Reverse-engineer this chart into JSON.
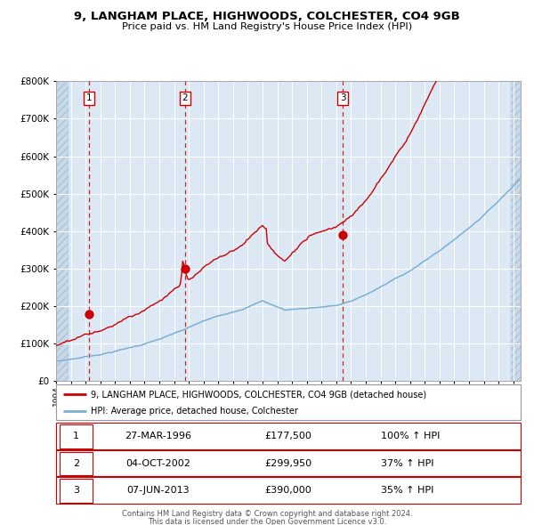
{
  "title1": "9, LANGHAM PLACE, HIGHWOODS, COLCHESTER, CO4 9GB",
  "title2": "Price paid vs. HM Land Registry's House Price Index (HPI)",
  "legend_line1": "9, LANGHAM PLACE, HIGHWOODS, COLCHESTER, CO4 9GB (detached house)",
  "legend_line2": "HPI: Average price, detached house, Colchester",
  "table": [
    [
      "1",
      "27-MAR-1996",
      "£177,500",
      "100% ↑ HPI"
    ],
    [
      "2",
      "04-OCT-2002",
      "£299,950",
      "37% ↑ HPI"
    ],
    [
      "3",
      "07-JUN-2013",
      "£390,000",
      "35% ↑ HPI"
    ]
  ],
  "footer1": "Contains HM Land Registry data © Crown copyright and database right 2024.",
  "footer2": "This data is licensed under the Open Government Licence v3.0.",
  "sale_dates": [
    1996.23,
    2002.75,
    2013.44
  ],
  "sale_prices": [
    177500,
    299950,
    390000
  ],
  "sale_labels": [
    "1",
    "2",
    "3"
  ],
  "red_color": "#cc0000",
  "blue_color": "#7aafd4",
  "bg_color": "#dce9f5",
  "grid_color": "#ffffff",
  "vline_color": "#cc0000",
  "ylim": [
    0,
    800000
  ],
  "xlim_start": 1994.0,
  "xlim_end": 2025.5
}
